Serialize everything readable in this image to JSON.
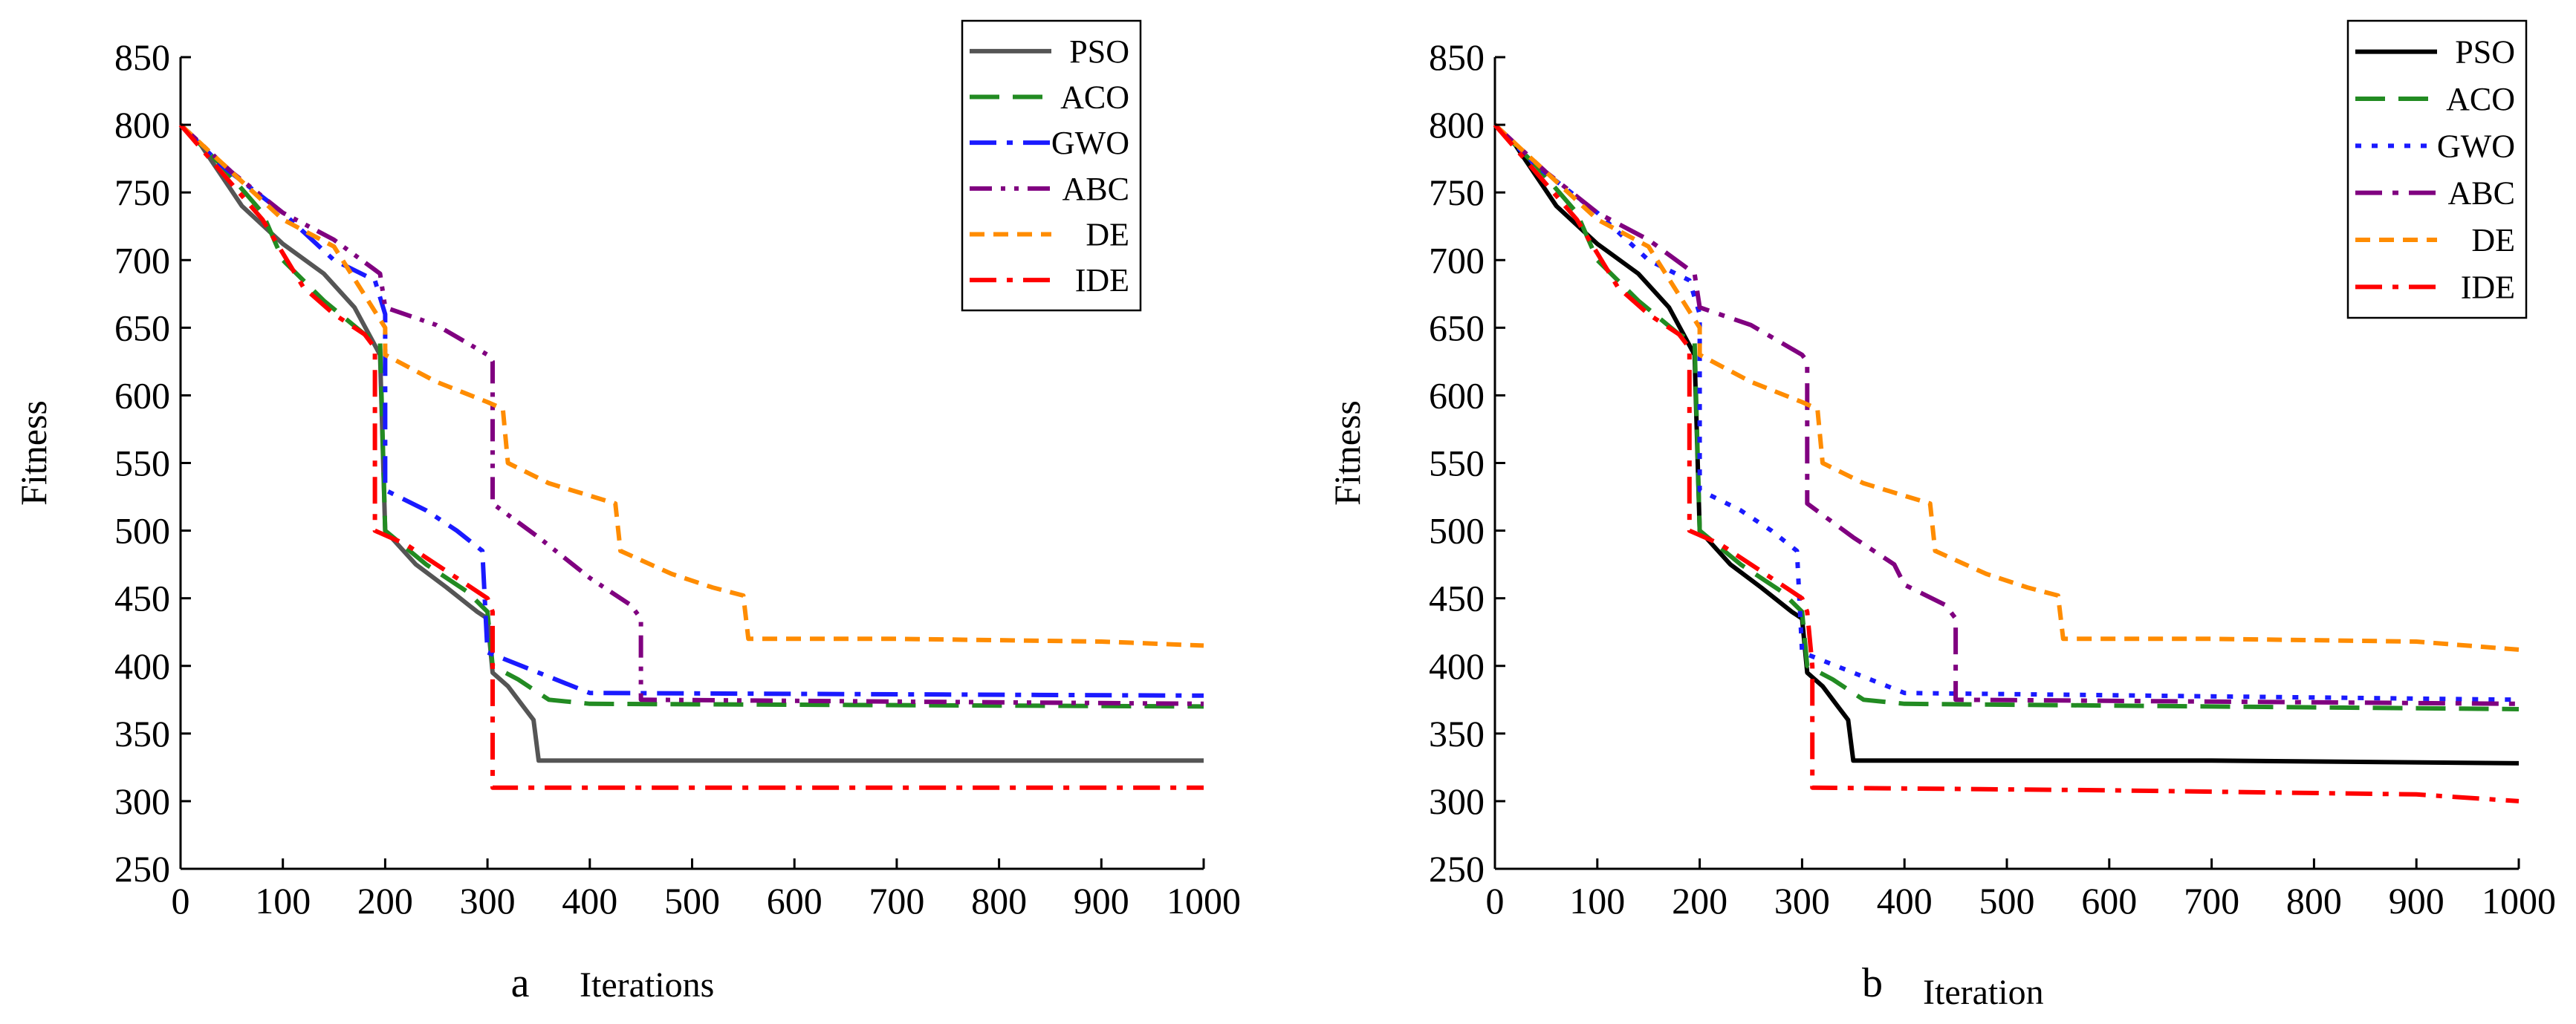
{
  "colors": {
    "PSO_a": "#555555",
    "PSO_b": "#000000",
    "ACO": "#228b22",
    "GWO": "#1a1aff",
    "ABC": "#800080",
    "DE": "#ff8c00",
    "IDE": "#ff0000"
  },
  "chart_data": [
    {
      "type": "line",
      "panel": "a",
      "caption_letter": "a",
      "xlabel": "Iterations",
      "ylabel": "Fitness",
      "xlim": [
        0,
        1000
      ],
      "ylim": [
        250,
        850
      ],
      "xticks": [
        0,
        100,
        200,
        300,
        400,
        500,
        600,
        700,
        800,
        900,
        1000
      ],
      "yticks": [
        250,
        300,
        350,
        400,
        450,
        500,
        550,
        600,
        650,
        700,
        750,
        800,
        850
      ],
      "legend_position": "top-right",
      "series": [
        {
          "name": "PSO",
          "style": "solid",
          "points": [
            [
              0,
              800
            ],
            [
              20,
              785
            ],
            [
              60,
              740
            ],
            [
              100,
              712
            ],
            [
              140,
              690
            ],
            [
              170,
              665
            ],
            [
              195,
              630
            ],
            [
              200,
              500
            ],
            [
              230,
              475
            ],
            [
              260,
              458
            ],
            [
              290,
              440
            ],
            [
              300,
              435
            ],
            [
              305,
              395
            ],
            [
              320,
              385
            ],
            [
              335,
              370
            ],
            [
              345,
              360
            ],
            [
              350,
              330
            ],
            [
              1000,
              330
            ]
          ]
        },
        {
          "name": "ACO",
          "style": "dash",
          "points": [
            [
              0,
              800
            ],
            [
              40,
              770
            ],
            [
              80,
              735
            ],
            [
              100,
              700
            ],
            [
              140,
              670
            ],
            [
              180,
              645
            ],
            [
              195,
              640
            ],
            [
              200,
              500
            ],
            [
              240,
              475
            ],
            [
              280,
              455
            ],
            [
              300,
              440
            ],
            [
              305,
              400
            ],
            [
              330,
              390
            ],
            [
              360,
              375
            ],
            [
              400,
              372
            ],
            [
              1000,
              370
            ]
          ]
        },
        {
          "name": "GWO",
          "style": "dashdot",
          "points": [
            [
              0,
              800
            ],
            [
              40,
              770
            ],
            [
              100,
              735
            ],
            [
              150,
              700
            ],
            [
              190,
              685
            ],
            [
              200,
              660
            ],
            [
              200,
              530
            ],
            [
              240,
              515
            ],
            [
              270,
              500
            ],
            [
              295,
              485
            ],
            [
              300,
              410
            ],
            [
              350,
              395
            ],
            [
              400,
              380
            ],
            [
              1000,
              378
            ]
          ]
        },
        {
          "name": "ABC",
          "style": "dashdotdot",
          "points": [
            [
              0,
              800
            ],
            [
              50,
              765
            ],
            [
              100,
              735
            ],
            [
              150,
              715
            ],
            [
              195,
              690
            ],
            [
              200,
              665
            ],
            [
              250,
              652
            ],
            [
              300,
              630
            ],
            [
              305,
              625
            ],
            [
              305,
              520
            ],
            [
              350,
              495
            ],
            [
              400,
              465
            ],
            [
              440,
              445
            ],
            [
              450,
              435
            ],
            [
              450,
              375
            ],
            [
              1000,
              372
            ]
          ]
        },
        {
          "name": "DE",
          "style": "shortdash",
          "points": [
            [
              0,
              800
            ],
            [
              50,
              765
            ],
            [
              100,
              730
            ],
            [
              150,
              710
            ],
            [
              200,
              650
            ],
            [
              200,
              630
            ],
            [
              250,
              610
            ],
            [
              300,
              595
            ],
            [
              315,
              590
            ],
            [
              320,
              550
            ],
            [
              360,
              535
            ],
            [
              425,
              520
            ],
            [
              430,
              485
            ],
            [
              480,
              468
            ],
            [
              520,
              458
            ],
            [
              550,
              452
            ],
            [
              555,
              420
            ],
            [
              700,
              420
            ],
            [
              900,
              418
            ],
            [
              1000,
              415
            ]
          ]
        },
        {
          "name": "IDE",
          "style": "dashdot",
          "points": [
            [
              0,
              800
            ],
            [
              40,
              765
            ],
            [
              80,
              730
            ],
            [
              100,
              705
            ],
            [
              120,
              680
            ],
            [
              150,
              660
            ],
            [
              180,
              645
            ],
            [
              190,
              635
            ],
            [
              190,
              500
            ],
            [
              220,
              490
            ],
            [
              260,
              470
            ],
            [
              300,
              450
            ],
            [
              305,
              440
            ],
            [
              305,
              310
            ],
            [
              1000,
              310
            ]
          ]
        }
      ]
    },
    {
      "type": "line",
      "panel": "b",
      "caption_letter": "b",
      "xlabel": "Iteration",
      "ylabel": "Fitness",
      "xlim": [
        0,
        1000
      ],
      "ylim": [
        250,
        850
      ],
      "xticks": [
        0,
        100,
        200,
        300,
        400,
        500,
        600,
        700,
        800,
        900,
        1000
      ],
      "yticks": [
        250,
        300,
        350,
        400,
        450,
        500,
        550,
        600,
        650,
        700,
        750,
        800,
        850
      ],
      "legend_position": "top-right",
      "series": [
        {
          "name": "PSO",
          "style": "solid",
          "points": [
            [
              0,
              800
            ],
            [
              20,
              785
            ],
            [
              60,
              740
            ],
            [
              100,
              712
            ],
            [
              140,
              690
            ],
            [
              170,
              665
            ],
            [
              195,
              630
            ],
            [
              200,
              500
            ],
            [
              230,
              475
            ],
            [
              260,
              458
            ],
            [
              290,
              440
            ],
            [
              300,
              435
            ],
            [
              305,
              395
            ],
            [
              320,
              385
            ],
            [
              335,
              370
            ],
            [
              345,
              360
            ],
            [
              350,
              330
            ],
            [
              700,
              330
            ],
            [
              1000,
              328
            ]
          ]
        },
        {
          "name": "ACO",
          "style": "dash",
          "points": [
            [
              0,
              800
            ],
            [
              40,
              770
            ],
            [
              80,
              735
            ],
            [
              100,
              700
            ],
            [
              140,
              670
            ],
            [
              180,
              645
            ],
            [
              195,
              640
            ],
            [
              200,
              500
            ],
            [
              240,
              475
            ],
            [
              280,
              455
            ],
            [
              300,
              440
            ],
            [
              305,
              400
            ],
            [
              330,
              390
            ],
            [
              360,
              375
            ],
            [
              400,
              372
            ],
            [
              1000,
              368
            ]
          ]
        },
        {
          "name": "GWO",
          "style": "dot",
          "points": [
            [
              0,
              800
            ],
            [
              40,
              770
            ],
            [
              100,
              735
            ],
            [
              150,
              700
            ],
            [
              190,
              685
            ],
            [
              200,
              660
            ],
            [
              200,
              530
            ],
            [
              240,
              515
            ],
            [
              270,
              500
            ],
            [
              295,
              485
            ],
            [
              300,
              410
            ],
            [
              350,
              395
            ],
            [
              400,
              380
            ],
            [
              1000,
              375
            ]
          ]
        },
        {
          "name": "ABC",
          "style": "dashdot",
          "points": [
            [
              0,
              800
            ],
            [
              50,
              765
            ],
            [
              100,
              735
            ],
            [
              150,
              715
            ],
            [
              195,
              690
            ],
            [
              200,
              665
            ],
            [
              250,
              652
            ],
            [
              300,
              630
            ],
            [
              305,
              625
            ],
            [
              305,
              520
            ],
            [
              350,
              495
            ],
            [
              390,
              475
            ],
            [
              400,
              460
            ],
            [
              440,
              445
            ],
            [
              450,
              435
            ],
            [
              450,
              375
            ],
            [
              1000,
              372
            ]
          ]
        },
        {
          "name": "DE",
          "style": "shortdash",
          "points": [
            [
              0,
              800
            ],
            [
              50,
              765
            ],
            [
              100,
              730
            ],
            [
              150,
              710
            ],
            [
              200,
              650
            ],
            [
              200,
              630
            ],
            [
              250,
              610
            ],
            [
              300,
              595
            ],
            [
              315,
              590
            ],
            [
              320,
              550
            ],
            [
              360,
              535
            ],
            [
              425,
              520
            ],
            [
              430,
              485
            ],
            [
              480,
              468
            ],
            [
              520,
              458
            ],
            [
              550,
              452
            ],
            [
              555,
              420
            ],
            [
              700,
              420
            ],
            [
              900,
              418
            ],
            [
              1000,
              412
            ]
          ]
        },
        {
          "name": "IDE",
          "style": "dashdot",
          "points": [
            [
              0,
              800
            ],
            [
              40,
              765
            ],
            [
              80,
              730
            ],
            [
              100,
              705
            ],
            [
              120,
              680
            ],
            [
              150,
              660
            ],
            [
              180,
              645
            ],
            [
              190,
              635
            ],
            [
              190,
              500
            ],
            [
              220,
              490
            ],
            [
              260,
              470
            ],
            [
              300,
              450
            ],
            [
              305,
              440
            ],
            [
              310,
              400
            ],
            [
              310,
              310
            ],
            [
              600,
              308
            ],
            [
              900,
              305
            ],
            [
              1000,
              300
            ]
          ]
        }
      ]
    }
  ]
}
